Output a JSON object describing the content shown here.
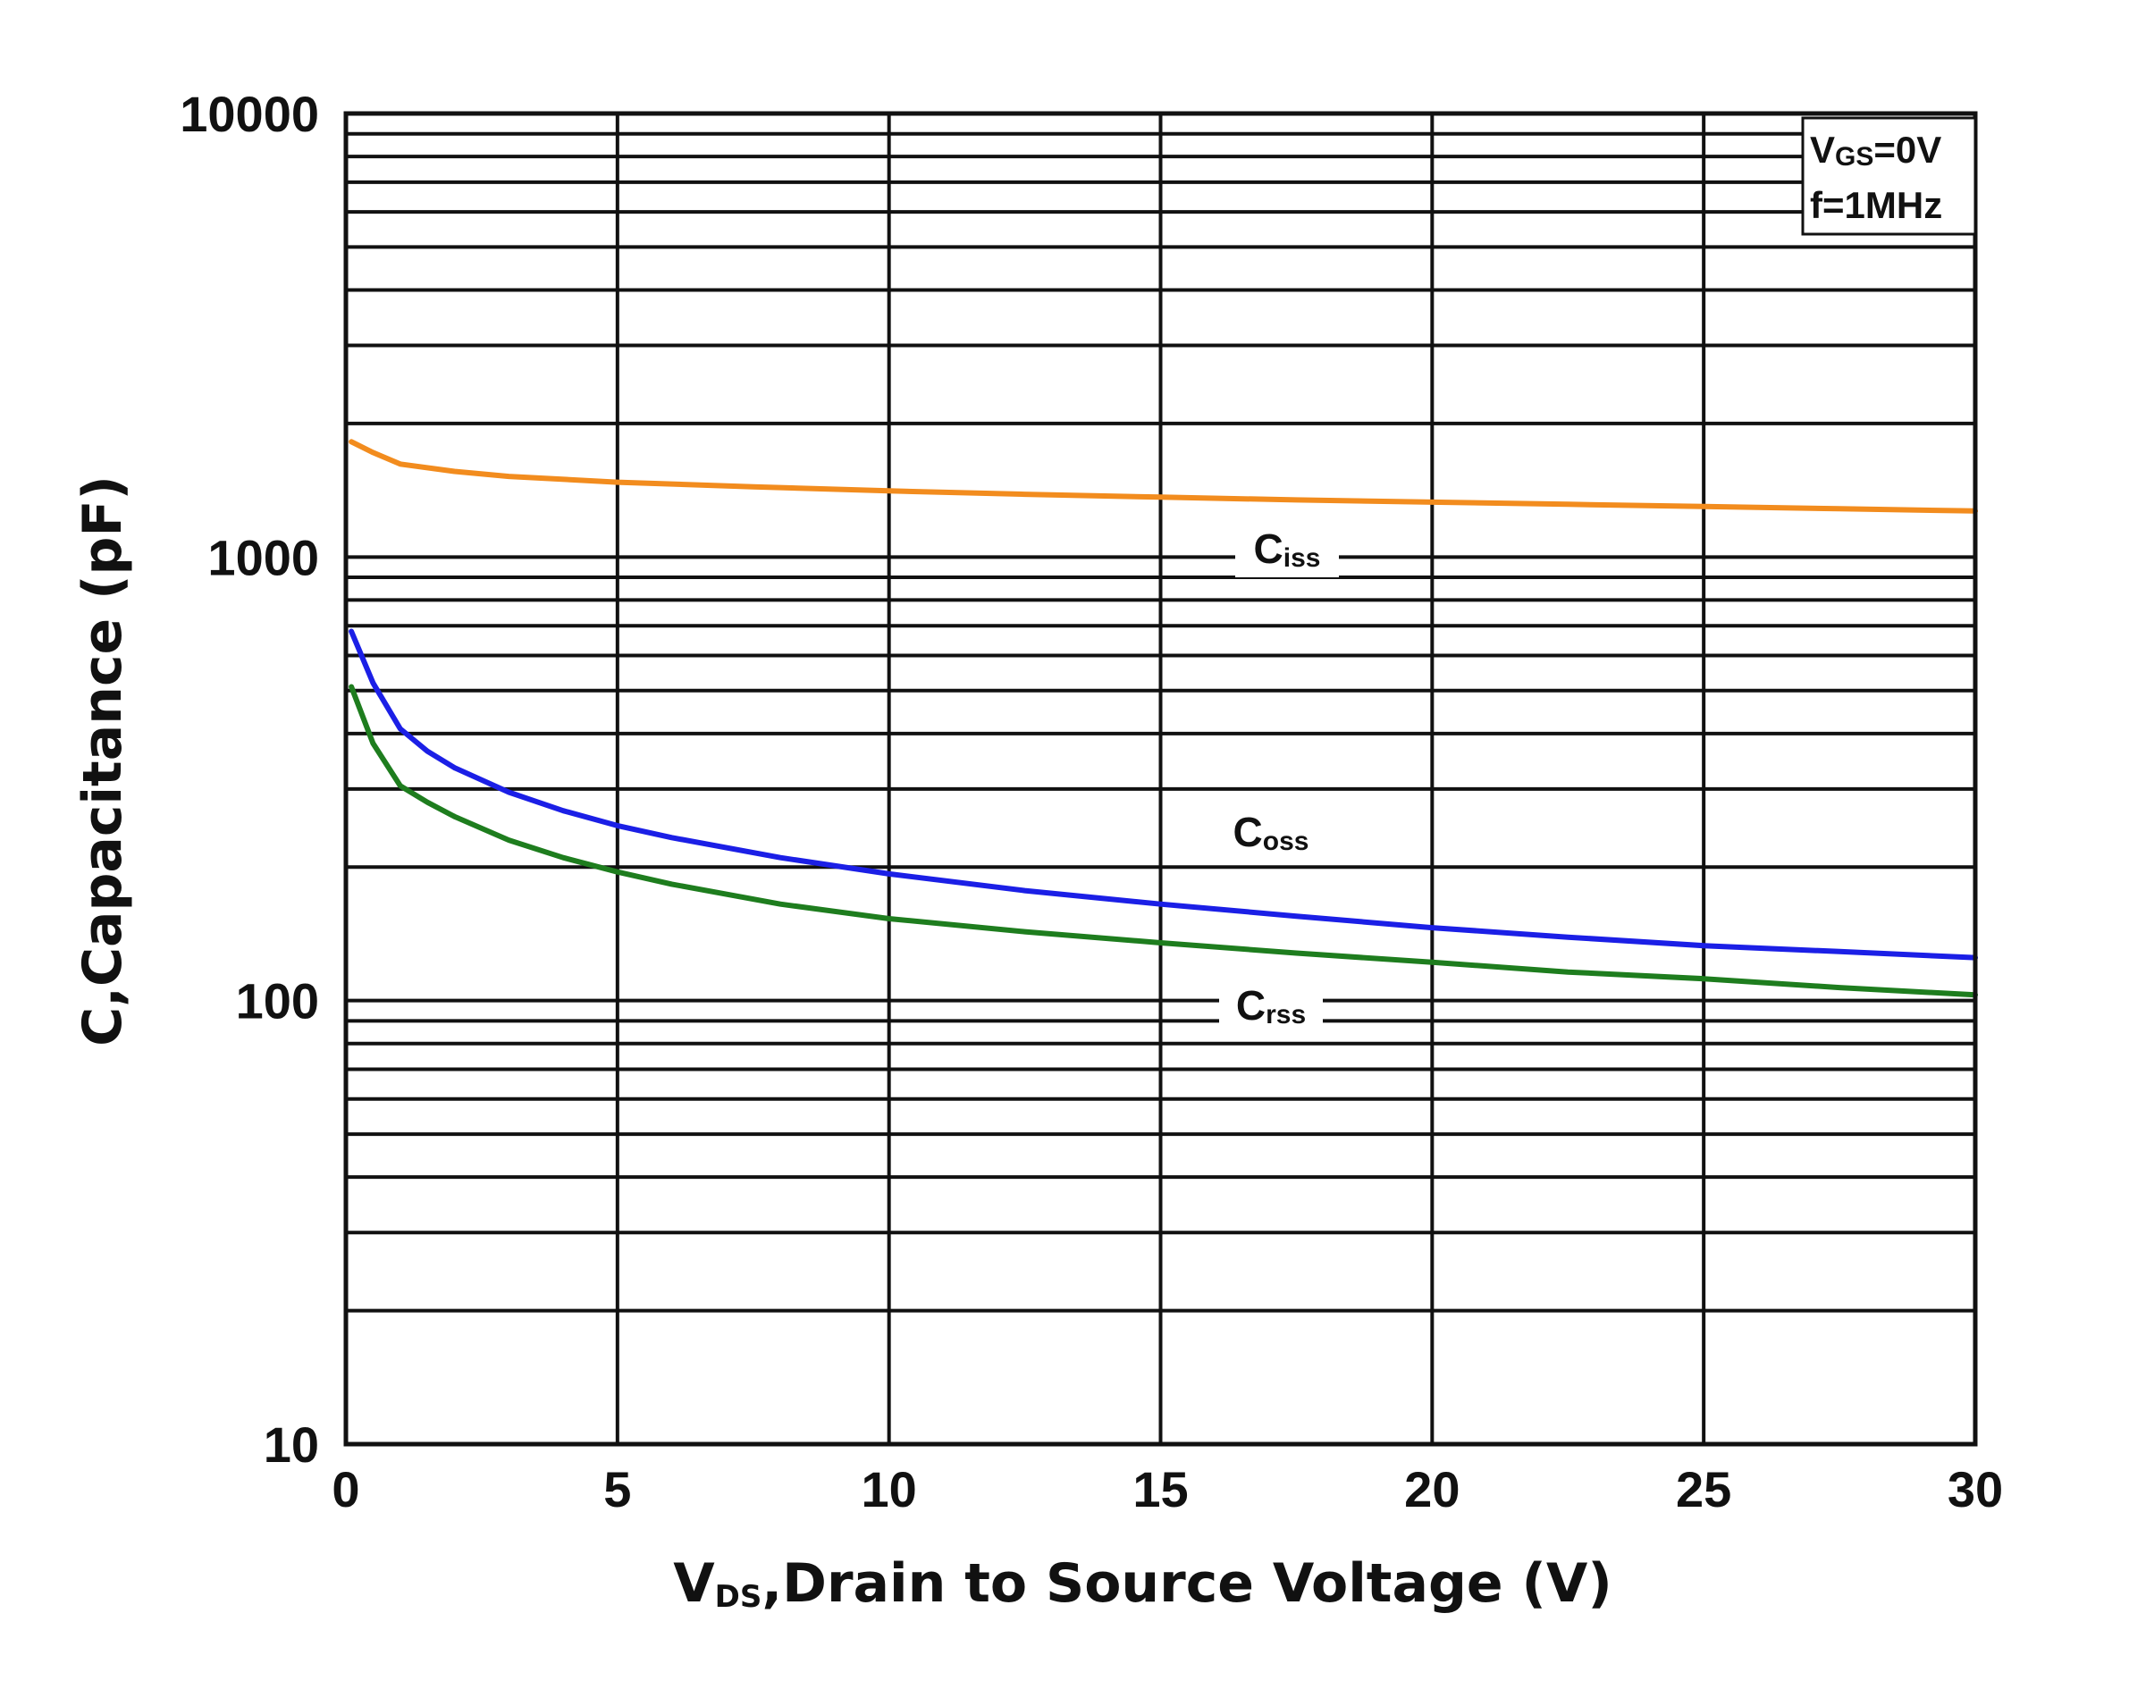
{
  "chart_data": {
    "type": "line",
    "title": "",
    "xlabel": {
      "prefix": "V",
      "sub": "DS",
      "suffix": ",Drain to Source Voltage (V)"
    },
    "ylabel": "C,Capacitance (pF)",
    "xlim": [
      0,
      30
    ],
    "ylim": [
      10,
      10000
    ],
    "yscale": "log",
    "x_ticks": [
      0,
      5,
      10,
      15,
      20,
      25,
      30
    ],
    "x_tick_labels": [
      "0",
      "5",
      "10",
      "15",
      "20",
      "25",
      "30"
    ],
    "y_ticks": [
      10,
      100,
      1000,
      10000
    ],
    "y_tick_labels": [
      "10",
      "100",
      "1000",
      "10000"
    ],
    "grid": true,
    "legend": {
      "placement": "top-right",
      "lines": [
        {
          "main": "V",
          "sub": "GS",
          "rest": "=0V"
        },
        {
          "main": "f=1MHz",
          "sub": "",
          "rest": ""
        }
      ]
    },
    "series": [
      {
        "name": "Ciss",
        "label_main": "C",
        "label_sub": "iss",
        "color": "#F28C1E",
        "x": [
          0.1,
          0.5,
          1,
          2,
          3,
          5,
          7.5,
          10,
          12.5,
          15,
          17.5,
          20,
          22.5,
          25,
          27.5,
          30
        ],
        "y": [
          1820,
          1720,
          1620,
          1560,
          1520,
          1475,
          1440,
          1410,
          1385,
          1365,
          1345,
          1330,
          1315,
          1300,
          1285,
          1270
        ]
      },
      {
        "name": "Coss",
        "label_main": "C",
        "label_sub": "oss",
        "color": "#1B1FE6",
        "x": [
          0.1,
          0.5,
          1,
          1.5,
          2,
          3,
          4,
          5,
          6,
          8,
          10,
          12.5,
          15,
          17.5,
          20,
          22.5,
          25,
          27.5,
          30
        ],
        "y": [
          680,
          520,
          410,
          365,
          335,
          295,
          268,
          248,
          233,
          210,
          193,
          177,
          165,
          155,
          146,
          139,
          133,
          129,
          125
        ]
      },
      {
        "name": "Crss",
        "label_main": "C",
        "label_sub": "rss",
        "color": "#1E7D1E",
        "x": [
          0.1,
          0.5,
          1,
          1.5,
          2,
          3,
          4,
          5,
          6,
          8,
          10,
          12.5,
          15,
          17.5,
          20,
          22.5,
          25,
          27.5,
          30
        ],
        "y": [
          510,
          380,
          305,
          280,
          260,
          230,
          210,
          195,
          183,
          165,
          153,
          143,
          135,
          128,
          122,
          116,
          112,
          107,
          103
        ]
      }
    ]
  }
}
